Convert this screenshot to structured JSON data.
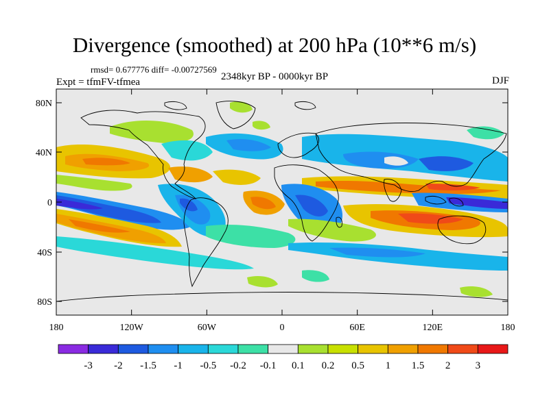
{
  "title": "Divergence (smoothed) at 200 hPa (10**6 m/s)",
  "stats": "rmsd= 0.677776  diff= -0.00727569",
  "expt_label": "Expt = tfmFV-tfmea",
  "period_label": "2348kyr BP - 0000kyr BP",
  "season_label": "DJF",
  "lat_ticks": [
    "80N",
    "40N",
    "0",
    "40S",
    "80S"
  ],
  "lon_ticks": [
    "180",
    "120W",
    "60W",
    "0",
    "60E",
    "120E",
    "180"
  ],
  "colorbar": {
    "colors": [
      "#8a2be2",
      "#3a2ad8",
      "#1e5ae0",
      "#1f8ef0",
      "#19b4ea",
      "#2ad8d8",
      "#3de0a6",
      "#e8e8e8",
      "#a8e030",
      "#c8e000",
      "#e8c400",
      "#f0a000",
      "#f07800",
      "#f04a18",
      "#e81818"
    ],
    "labels": [
      "-3",
      "-2",
      "-1.5",
      "-1",
      "-0.5",
      "-0.2",
      "-0.1",
      "0.1",
      "0.2",
      "0.5",
      "1",
      "1.5",
      "2",
      "3"
    ]
  },
  "palette": {
    "background": "#e8e8e8",
    "coast": "#000000"
  }
}
